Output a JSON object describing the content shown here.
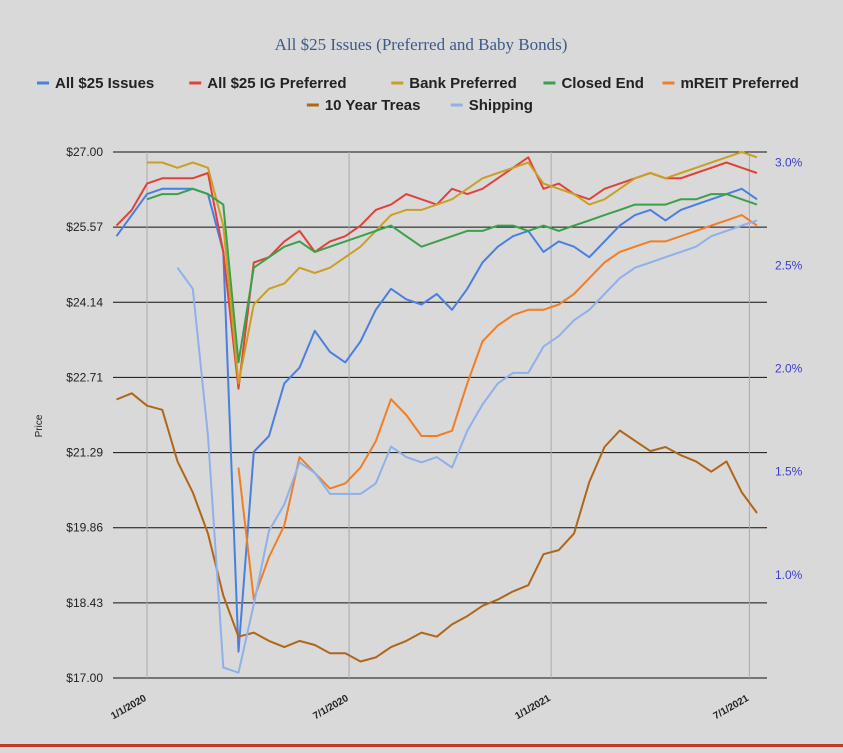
{
  "chart_data": {
    "type": "line",
    "title": "All $25 Issues (Preferred and Baby Bonds)",
    "ylabel": "Price",
    "ylim": [
      17.0,
      27.0
    ],
    "y_ticks": [
      "$27.00",
      "$25.57",
      "$24.14",
      "$22.71",
      "$21.29",
      "$19.86",
      "$18.43",
      "$17.00"
    ],
    "y2lim": [
      0.5,
      3.05
    ],
    "y2_ticks": [
      "3.0%",
      "2.5%",
      "2.0%",
      "1.5%",
      "1.0%"
    ],
    "x_ticks": [
      "1/1/2020",
      "7/1/2020",
      "1/1/2021",
      "7/1/2021"
    ],
    "xlim": [
      0,
      80
    ],
    "x_tick_positions": [
      0,
      26.5,
      53,
      79
    ],
    "grid": true,
    "legend_position": "top",
    "series": [
      {
        "name": "All $25 Issues",
        "color": "#4a7fe0",
        "axis": "left",
        "x": [
          -4,
          -2,
          0,
          2,
          4,
          6,
          8,
          10,
          12,
          14,
          16,
          18,
          20,
          22,
          24,
          26,
          28,
          30,
          32,
          34,
          36,
          38,
          40,
          42,
          44,
          46,
          48,
          50,
          52,
          54,
          56,
          58,
          60,
          62,
          64,
          66,
          68,
          70,
          72,
          74,
          76,
          78,
          80
        ],
        "y": [
          25.4,
          25.8,
          26.2,
          26.3,
          26.3,
          26.3,
          26.2,
          25.1,
          17.5,
          21.3,
          21.6,
          22.6,
          22.9,
          23.6,
          23.2,
          23.0,
          23.4,
          24.0,
          24.4,
          24.2,
          24.1,
          24.3,
          24.0,
          24.4,
          24.9,
          25.2,
          25.4,
          25.5,
          25.1,
          25.3,
          25.2,
          25.0,
          25.3,
          25.6,
          25.8,
          25.9,
          25.7,
          25.9,
          26.0,
          26.1,
          26.2,
          26.3,
          26.1
        ]
      },
      {
        "name": "All $25 IG Preferred",
        "color": "#e0423a",
        "axis": "left",
        "x": [
          -4,
          -2,
          0,
          2,
          4,
          6,
          8,
          10,
          12,
          14,
          16,
          18,
          20,
          22,
          24,
          26,
          28,
          30,
          32,
          34,
          36,
          38,
          40,
          42,
          44,
          46,
          48,
          50,
          52,
          54,
          56,
          58,
          60,
          62,
          64,
          66,
          68,
          70,
          72,
          74,
          76,
          78,
          80
        ],
        "y": [
          25.6,
          25.9,
          26.4,
          26.5,
          26.5,
          26.5,
          26.6,
          25.1,
          22.5,
          24.9,
          25.0,
          25.3,
          25.5,
          25.1,
          25.3,
          25.4,
          25.6,
          25.9,
          26.0,
          26.2,
          26.1,
          26.0,
          26.3,
          26.2,
          26.3,
          26.5,
          26.7,
          26.9,
          26.3,
          26.4,
          26.2,
          26.1,
          26.3,
          26.4,
          26.5,
          26.6,
          26.5,
          26.5,
          26.6,
          26.7,
          26.8,
          26.7,
          26.6
        ]
      },
      {
        "name": "Bank Preferred",
        "color": "#c9a024",
        "axis": "left",
        "x": [
          -4,
          -2,
          0,
          2,
          4,
          6,
          8,
          10,
          12,
          14,
          16,
          18,
          20,
          22,
          24,
          26,
          28,
          30,
          32,
          34,
          36,
          38,
          40,
          42,
          44,
          46,
          48,
          50,
          52,
          54,
          56,
          58,
          60,
          62,
          64,
          66,
          68,
          70,
          72,
          74,
          76,
          78,
          80
        ],
        "y": [
          null,
          null,
          26.8,
          26.8,
          26.7,
          26.8,
          26.7,
          25.6,
          22.6,
          24.1,
          24.4,
          24.5,
          24.8,
          24.7,
          24.8,
          25.0,
          25.2,
          25.5,
          25.8,
          25.9,
          25.9,
          26.0,
          26.1,
          26.3,
          26.5,
          26.6,
          26.7,
          26.8,
          26.4,
          26.3,
          26.2,
          26.0,
          26.1,
          26.3,
          26.5,
          26.6,
          26.5,
          26.6,
          26.7,
          26.8,
          26.9,
          27.0,
          26.9
        ]
      },
      {
        "name": "Closed End",
        "color": "#3aa04a",
        "axis": "left",
        "x": [
          -4,
          -2,
          0,
          2,
          4,
          6,
          8,
          10,
          12,
          14,
          16,
          18,
          20,
          22,
          24,
          26,
          28,
          30,
          32,
          34,
          36,
          38,
          40,
          42,
          44,
          46,
          48,
          50,
          52,
          54,
          56,
          58,
          60,
          62,
          64,
          66,
          68,
          70,
          72,
          74,
          76,
          78,
          80
        ],
        "y": [
          null,
          null,
          26.1,
          26.2,
          26.2,
          26.3,
          26.2,
          26.0,
          23.0,
          24.8,
          25.0,
          25.2,
          25.3,
          25.1,
          25.2,
          25.3,
          25.4,
          25.5,
          25.6,
          25.4,
          25.2,
          25.3,
          25.4,
          25.5,
          25.5,
          25.6,
          25.6,
          25.5,
          25.6,
          25.5,
          25.6,
          25.7,
          25.8,
          25.9,
          26.0,
          26.0,
          26.0,
          26.1,
          26.1,
          26.2,
          26.2,
          26.1,
          26.0
        ]
      },
      {
        "name": "mREIT Preferred",
        "color": "#f07e26",
        "axis": "left",
        "x": [
          -4,
          -2,
          0,
          2,
          4,
          6,
          8,
          10,
          12,
          14,
          16,
          18,
          20,
          22,
          24,
          26,
          28,
          30,
          32,
          34,
          36,
          38,
          40,
          42,
          44,
          46,
          48,
          50,
          52,
          54,
          56,
          58,
          60,
          62,
          64,
          66,
          68,
          70,
          72,
          74,
          76,
          78,
          80
        ],
        "y": [
          null,
          null,
          null,
          null,
          null,
          null,
          null,
          null,
          21.0,
          18.5,
          19.3,
          19.9,
          21.2,
          20.9,
          20.6,
          20.7,
          21.0,
          21.5,
          22.3,
          22.0,
          21.6,
          21.6,
          21.7,
          22.6,
          23.4,
          23.7,
          23.9,
          24.0,
          24.0,
          24.1,
          24.3,
          24.6,
          24.9,
          25.1,
          25.2,
          25.3,
          25.3,
          25.4,
          25.5,
          25.6,
          25.7,
          25.8,
          25.6
        ]
      },
      {
        "name": "10 Year Treas",
        "color": "#b0661a",
        "axis": "right",
        "x": [
          -4,
          -2,
          0,
          2,
          4,
          6,
          8,
          10,
          12,
          14,
          16,
          18,
          20,
          22,
          24,
          26,
          28,
          30,
          32,
          34,
          36,
          38,
          40,
          42,
          44,
          46,
          48,
          50,
          52,
          54,
          56,
          58,
          60,
          62,
          64,
          66,
          68,
          70,
          72,
          74,
          76,
          78,
          80
        ],
        "y": [
          1.85,
          1.88,
          1.82,
          1.8,
          1.55,
          1.4,
          1.2,
          0.9,
          0.7,
          0.72,
          0.68,
          0.65,
          0.68,
          0.66,
          0.62,
          0.62,
          0.58,
          0.6,
          0.65,
          0.68,
          0.72,
          0.7,
          0.76,
          0.8,
          0.85,
          0.88,
          0.92,
          0.95,
          1.1,
          1.12,
          1.2,
          1.45,
          1.62,
          1.7,
          1.65,
          1.6,
          1.62,
          1.58,
          1.55,
          1.5,
          1.55,
          1.4,
          1.3
        ]
      },
      {
        "name": "Shipping",
        "color": "#8fb0ea",
        "axis": "left",
        "x": [
          -4,
          -2,
          0,
          2,
          4,
          6,
          8,
          10,
          12,
          14,
          16,
          18,
          20,
          22,
          24,
          26,
          28,
          30,
          32,
          34,
          36,
          38,
          40,
          42,
          44,
          46,
          48,
          50,
          52,
          54,
          56,
          58,
          60,
          62,
          64,
          66,
          68,
          70,
          72,
          74,
          76,
          78,
          80
        ],
        "y": [
          null,
          null,
          null,
          null,
          24.8,
          24.4,
          21.6,
          17.2,
          17.1,
          18.4,
          19.8,
          20.3,
          21.1,
          20.9,
          20.5,
          20.5,
          20.5,
          20.7,
          21.4,
          21.2,
          21.1,
          21.2,
          21.0,
          21.7,
          22.2,
          22.6,
          22.8,
          22.8,
          23.3,
          23.5,
          23.8,
          24.0,
          24.3,
          24.6,
          24.8,
          24.9,
          25.0,
          25.1,
          25.2,
          25.4,
          25.5,
          25.6,
          25.7
        ]
      }
    ]
  }
}
